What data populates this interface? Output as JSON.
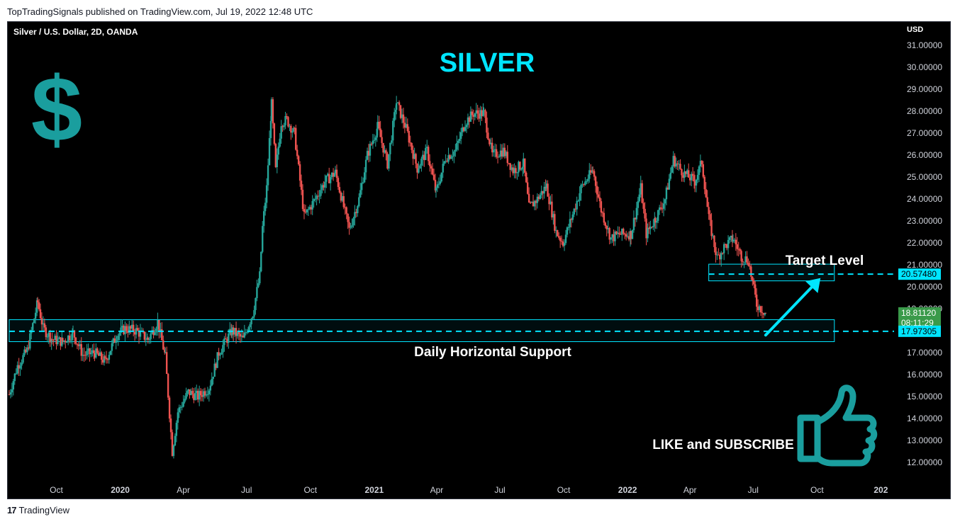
{
  "header": {
    "published": "TopTradingSignals published on TradingView.com, Jul 19, 2022 12:48 UTC"
  },
  "footer": {
    "brand": "TradingView",
    "logo_glyph": "17"
  },
  "colors": {
    "up": "#26a69a",
    "down": "#ef5350",
    "accent": "#00e5ff",
    "teal_icon": "#1a9e9e",
    "price_tag": "#3a9a4a"
  },
  "chart_data": {
    "type": "candlestick",
    "title": "SILVER",
    "symbol_label": "Silver / U.S. Dollar, 2D, OANDA",
    "currency_label": "USD",
    "dollar_glyph": "$",
    "ylim": [
      11.5,
      31.6
    ],
    "y_ticks": [
      {
        "value": 31,
        "label": "31.00000"
      },
      {
        "value": 30,
        "label": "30.00000"
      },
      {
        "value": 29,
        "label": "29.00000"
      },
      {
        "value": 28,
        "label": "28.00000"
      },
      {
        "value": 27,
        "label": "27.00000"
      },
      {
        "value": 26,
        "label": "26.00000"
      },
      {
        "value": 25,
        "label": "25.00000"
      },
      {
        "value": 24,
        "label": "24.00000"
      },
      {
        "value": 23,
        "label": "23.00000"
      },
      {
        "value": 22,
        "label": "22.00000"
      },
      {
        "value": 21,
        "label": "21.00000"
      },
      {
        "value": 20,
        "label": "20.00000"
      },
      {
        "value": 19,
        "label": "19.00000"
      },
      {
        "value": 17,
        "label": "17.00000"
      },
      {
        "value": 16,
        "label": "16.00000"
      },
      {
        "value": 15,
        "label": "15.00000"
      },
      {
        "value": 14,
        "label": "14.00000"
      },
      {
        "value": 13,
        "label": "13.00000"
      },
      {
        "value": 12,
        "label": "12.00000"
      }
    ],
    "x_ticks": [
      {
        "date": "2019-10-01",
        "label": "Oct",
        "bold": false
      },
      {
        "date": "2020-01-01",
        "label": "2020",
        "bold": true
      },
      {
        "date": "2020-04-01",
        "label": "Apr",
        "bold": false
      },
      {
        "date": "2020-07-01",
        "label": "Jul",
        "bold": false
      },
      {
        "date": "2020-10-01",
        "label": "Oct",
        "bold": false
      },
      {
        "date": "2021-01-01",
        "label": "2021",
        "bold": true
      },
      {
        "date": "2021-04-01",
        "label": "Apr",
        "bold": false
      },
      {
        "date": "2021-07-01",
        "label": "Jul",
        "bold": false
      },
      {
        "date": "2021-10-01",
        "label": "Oct",
        "bold": false
      },
      {
        "date": "2022-01-01",
        "label": "2022",
        "bold": true
      },
      {
        "date": "2022-04-01",
        "label": "Apr",
        "bold": false
      },
      {
        "date": "2022-07-01",
        "label": "Jul",
        "bold": false
      },
      {
        "date": "2022-10-01",
        "label": "Oct",
        "bold": false
      },
      {
        "date": "2023-01-01",
        "label": "202",
        "bold": true
      }
    ],
    "date_range": [
      "2019-07-23",
      "2023-01-20"
    ],
    "series": [
      {
        "date": "2019-07-25",
        "close": 15.1
      },
      {
        "date": "2019-08-06",
        "close": 16.4
      },
      {
        "date": "2019-08-20",
        "close": 17.1
      },
      {
        "date": "2019-09-04",
        "close": 19.3
      },
      {
        "date": "2019-09-12",
        "close": 18.1
      },
      {
        "date": "2019-09-25",
        "close": 17.6
      },
      {
        "date": "2019-10-10",
        "close": 17.5
      },
      {
        "date": "2019-10-25",
        "close": 17.9
      },
      {
        "date": "2019-11-08",
        "close": 16.9
      },
      {
        "date": "2019-11-25",
        "close": 17.0
      },
      {
        "date": "2019-12-10",
        "close": 16.6
      },
      {
        "date": "2019-12-27",
        "close": 17.8
      },
      {
        "date": "2020-01-08",
        "close": 18.1
      },
      {
        "date": "2020-01-24",
        "close": 18.0
      },
      {
        "date": "2020-02-10",
        "close": 17.6
      },
      {
        "date": "2020-02-24",
        "close": 18.4
      },
      {
        "date": "2020-03-06",
        "close": 16.8
      },
      {
        "date": "2020-03-16",
        "close": 12.5
      },
      {
        "date": "2020-03-24",
        "close": 14.3
      },
      {
        "date": "2020-04-08",
        "close": 15.2
      },
      {
        "date": "2020-04-22",
        "close": 15.0
      },
      {
        "date": "2020-05-08",
        "close": 15.4
      },
      {
        "date": "2020-05-22",
        "close": 17.0
      },
      {
        "date": "2020-06-10",
        "close": 18.0
      },
      {
        "date": "2020-06-26",
        "close": 17.6
      },
      {
        "date": "2020-07-10",
        "close": 18.8
      },
      {
        "date": "2020-07-20",
        "close": 20.5
      },
      {
        "date": "2020-07-24",
        "close": 22.7
      },
      {
        "date": "2020-07-30",
        "close": 24.5
      },
      {
        "date": "2020-08-06",
        "close": 28.3
      },
      {
        "date": "2020-08-12",
        "close": 25.3
      },
      {
        "date": "2020-08-20",
        "close": 27.5
      },
      {
        "date": "2020-08-28",
        "close": 27.6
      },
      {
        "date": "2020-09-08",
        "close": 27.0
      },
      {
        "date": "2020-09-22",
        "close": 23.2
      },
      {
        "date": "2020-10-08",
        "close": 24.0
      },
      {
        "date": "2020-10-22",
        "close": 24.8
      },
      {
        "date": "2020-11-06",
        "close": 25.2
      },
      {
        "date": "2020-11-26",
        "close": 22.6
      },
      {
        "date": "2020-12-10",
        "close": 24.0
      },
      {
        "date": "2020-12-22",
        "close": 26.0
      },
      {
        "date": "2021-01-06",
        "close": 27.3
      },
      {
        "date": "2021-01-20",
        "close": 25.6
      },
      {
        "date": "2021-02-02",
        "close": 28.4
      },
      {
        "date": "2021-02-16",
        "close": 27.2
      },
      {
        "date": "2021-03-04",
        "close": 25.4
      },
      {
        "date": "2021-03-18",
        "close": 26.2
      },
      {
        "date": "2021-03-31",
        "close": 24.3
      },
      {
        "date": "2021-04-14",
        "close": 25.9
      },
      {
        "date": "2021-04-28",
        "close": 26.2
      },
      {
        "date": "2021-05-12",
        "close": 27.5
      },
      {
        "date": "2021-05-24",
        "close": 27.9
      },
      {
        "date": "2021-06-08",
        "close": 27.9
      },
      {
        "date": "2021-06-20",
        "close": 26.0
      },
      {
        "date": "2021-07-06",
        "close": 26.2
      },
      {
        "date": "2021-07-20",
        "close": 25.3
      },
      {
        "date": "2021-08-04",
        "close": 25.6
      },
      {
        "date": "2021-08-12",
        "close": 23.6
      },
      {
        "date": "2021-08-24",
        "close": 24.0
      },
      {
        "date": "2021-09-06",
        "close": 24.6
      },
      {
        "date": "2021-09-20",
        "close": 22.5
      },
      {
        "date": "2021-09-30",
        "close": 22.0
      },
      {
        "date": "2021-10-14",
        "close": 23.3
      },
      {
        "date": "2021-10-26",
        "close": 24.5
      },
      {
        "date": "2021-11-12",
        "close": 25.3
      },
      {
        "date": "2021-11-24",
        "close": 23.5
      },
      {
        "date": "2021-12-08",
        "close": 22.2
      },
      {
        "date": "2021-12-20",
        "close": 22.4
      },
      {
        "date": "2022-01-06",
        "close": 22.4
      },
      {
        "date": "2022-01-20",
        "close": 24.5
      },
      {
        "date": "2022-01-28",
        "close": 22.4
      },
      {
        "date": "2022-02-10",
        "close": 23.1
      },
      {
        "date": "2022-02-24",
        "close": 24.0
      },
      {
        "date": "2022-03-08",
        "close": 25.8
      },
      {
        "date": "2022-03-22",
        "close": 25.2
      },
      {
        "date": "2022-04-08",
        "close": 24.8
      },
      {
        "date": "2022-04-18",
        "close": 25.7
      },
      {
        "date": "2022-04-28",
        "close": 23.1
      },
      {
        "date": "2022-05-10",
        "close": 21.3
      },
      {
        "date": "2022-05-20",
        "close": 21.8
      },
      {
        "date": "2022-06-02",
        "close": 22.2
      },
      {
        "date": "2022-06-14",
        "close": 21.4
      },
      {
        "date": "2022-06-24",
        "close": 21.2
      },
      {
        "date": "2022-07-06",
        "close": 19.2
      },
      {
        "date": "2022-07-19",
        "close": 18.81
      }
    ],
    "zones": [
      {
        "name": "target-zone",
        "from": 20.27,
        "to": 21.03,
        "start": "2022-04-28",
        "end": "2022-10-26"
      },
      {
        "name": "support-zone",
        "from": 17.5,
        "to": 18.5,
        "start": "2019-07-25",
        "end": "2022-10-26"
      }
    ],
    "levels": [
      {
        "name": "target-level",
        "value": 20.5748,
        "label": "20.57480",
        "start": "2022-04-28",
        "end": "2023-01-20"
      },
      {
        "name": "support-level",
        "value": 17.97305,
        "label": "17.97305",
        "start": "2019-07-25",
        "end": "2023-01-20"
      }
    ],
    "annotations": [
      {
        "name": "target-level-label",
        "text": "Target Level"
      },
      {
        "name": "support-label",
        "text": "Daily Horizontal Support"
      },
      {
        "name": "like-subscribe-label",
        "text": "LIKE and SUBSCRIBE"
      }
    ],
    "last_price": {
      "value": 18.8112,
      "label": "18.81120",
      "countdown": "08:11:29"
    },
    "arrow": {
      "from_date": "2022-07-19",
      "from_value": 17.8,
      "to_date": "2022-10-06",
      "to_value": 20.4
    }
  }
}
